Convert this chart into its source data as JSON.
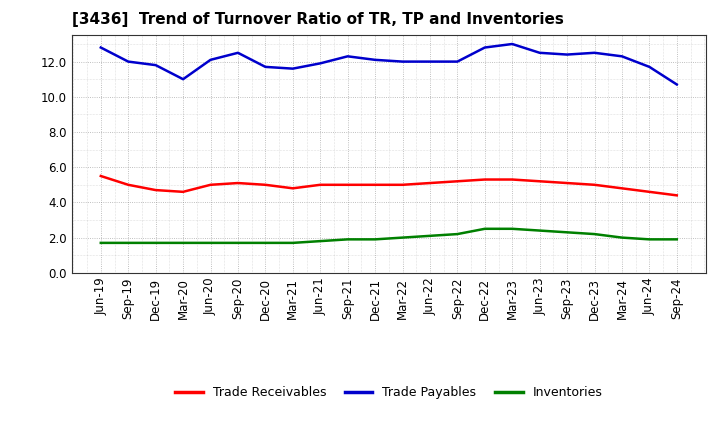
{
  "title": "[3436]  Trend of Turnover Ratio of TR, TP and Inventories",
  "x_labels": [
    "Jun-19",
    "Sep-19",
    "Dec-19",
    "Mar-20",
    "Jun-20",
    "Sep-20",
    "Dec-20",
    "Mar-21",
    "Jun-21",
    "Sep-21",
    "Dec-21",
    "Mar-22",
    "Jun-22",
    "Sep-22",
    "Dec-22",
    "Mar-23",
    "Jun-23",
    "Sep-23",
    "Dec-23",
    "Mar-24",
    "Jun-24",
    "Sep-24"
  ],
  "trade_receivables": [
    5.5,
    5.0,
    4.7,
    4.6,
    5.0,
    5.1,
    5.0,
    4.8,
    5.0,
    5.0,
    5.0,
    5.0,
    5.1,
    5.2,
    5.3,
    5.3,
    5.2,
    5.1,
    5.0,
    4.8,
    4.6,
    4.4
  ],
  "trade_payables": [
    12.8,
    12.0,
    11.8,
    11.0,
    12.1,
    12.5,
    11.7,
    11.6,
    11.9,
    12.3,
    12.1,
    12.0,
    12.0,
    12.0,
    12.8,
    13.0,
    12.5,
    12.4,
    12.5,
    12.3,
    11.7,
    10.7
  ],
  "inventories": [
    1.7,
    1.7,
    1.7,
    1.7,
    1.7,
    1.7,
    1.7,
    1.7,
    1.8,
    1.9,
    1.9,
    2.0,
    2.1,
    2.2,
    2.5,
    2.5,
    2.4,
    2.3,
    2.2,
    2.0,
    1.9,
    1.9
  ],
  "ylim": [
    0,
    13.5
  ],
  "yticks": [
    0.0,
    2.0,
    4.0,
    6.0,
    8.0,
    10.0,
    12.0
  ],
  "line_colors": {
    "trade_receivables": "#ff0000",
    "trade_payables": "#0000cc",
    "inventories": "#008000"
  },
  "legend_labels": [
    "Trade Receivables",
    "Trade Payables",
    "Inventories"
  ],
  "background_color": "#ffffff",
  "grid_color": "#888888",
  "linewidth": 1.8,
  "title_fontsize": 11,
  "tick_fontsize": 8.5,
  "legend_fontsize": 9
}
